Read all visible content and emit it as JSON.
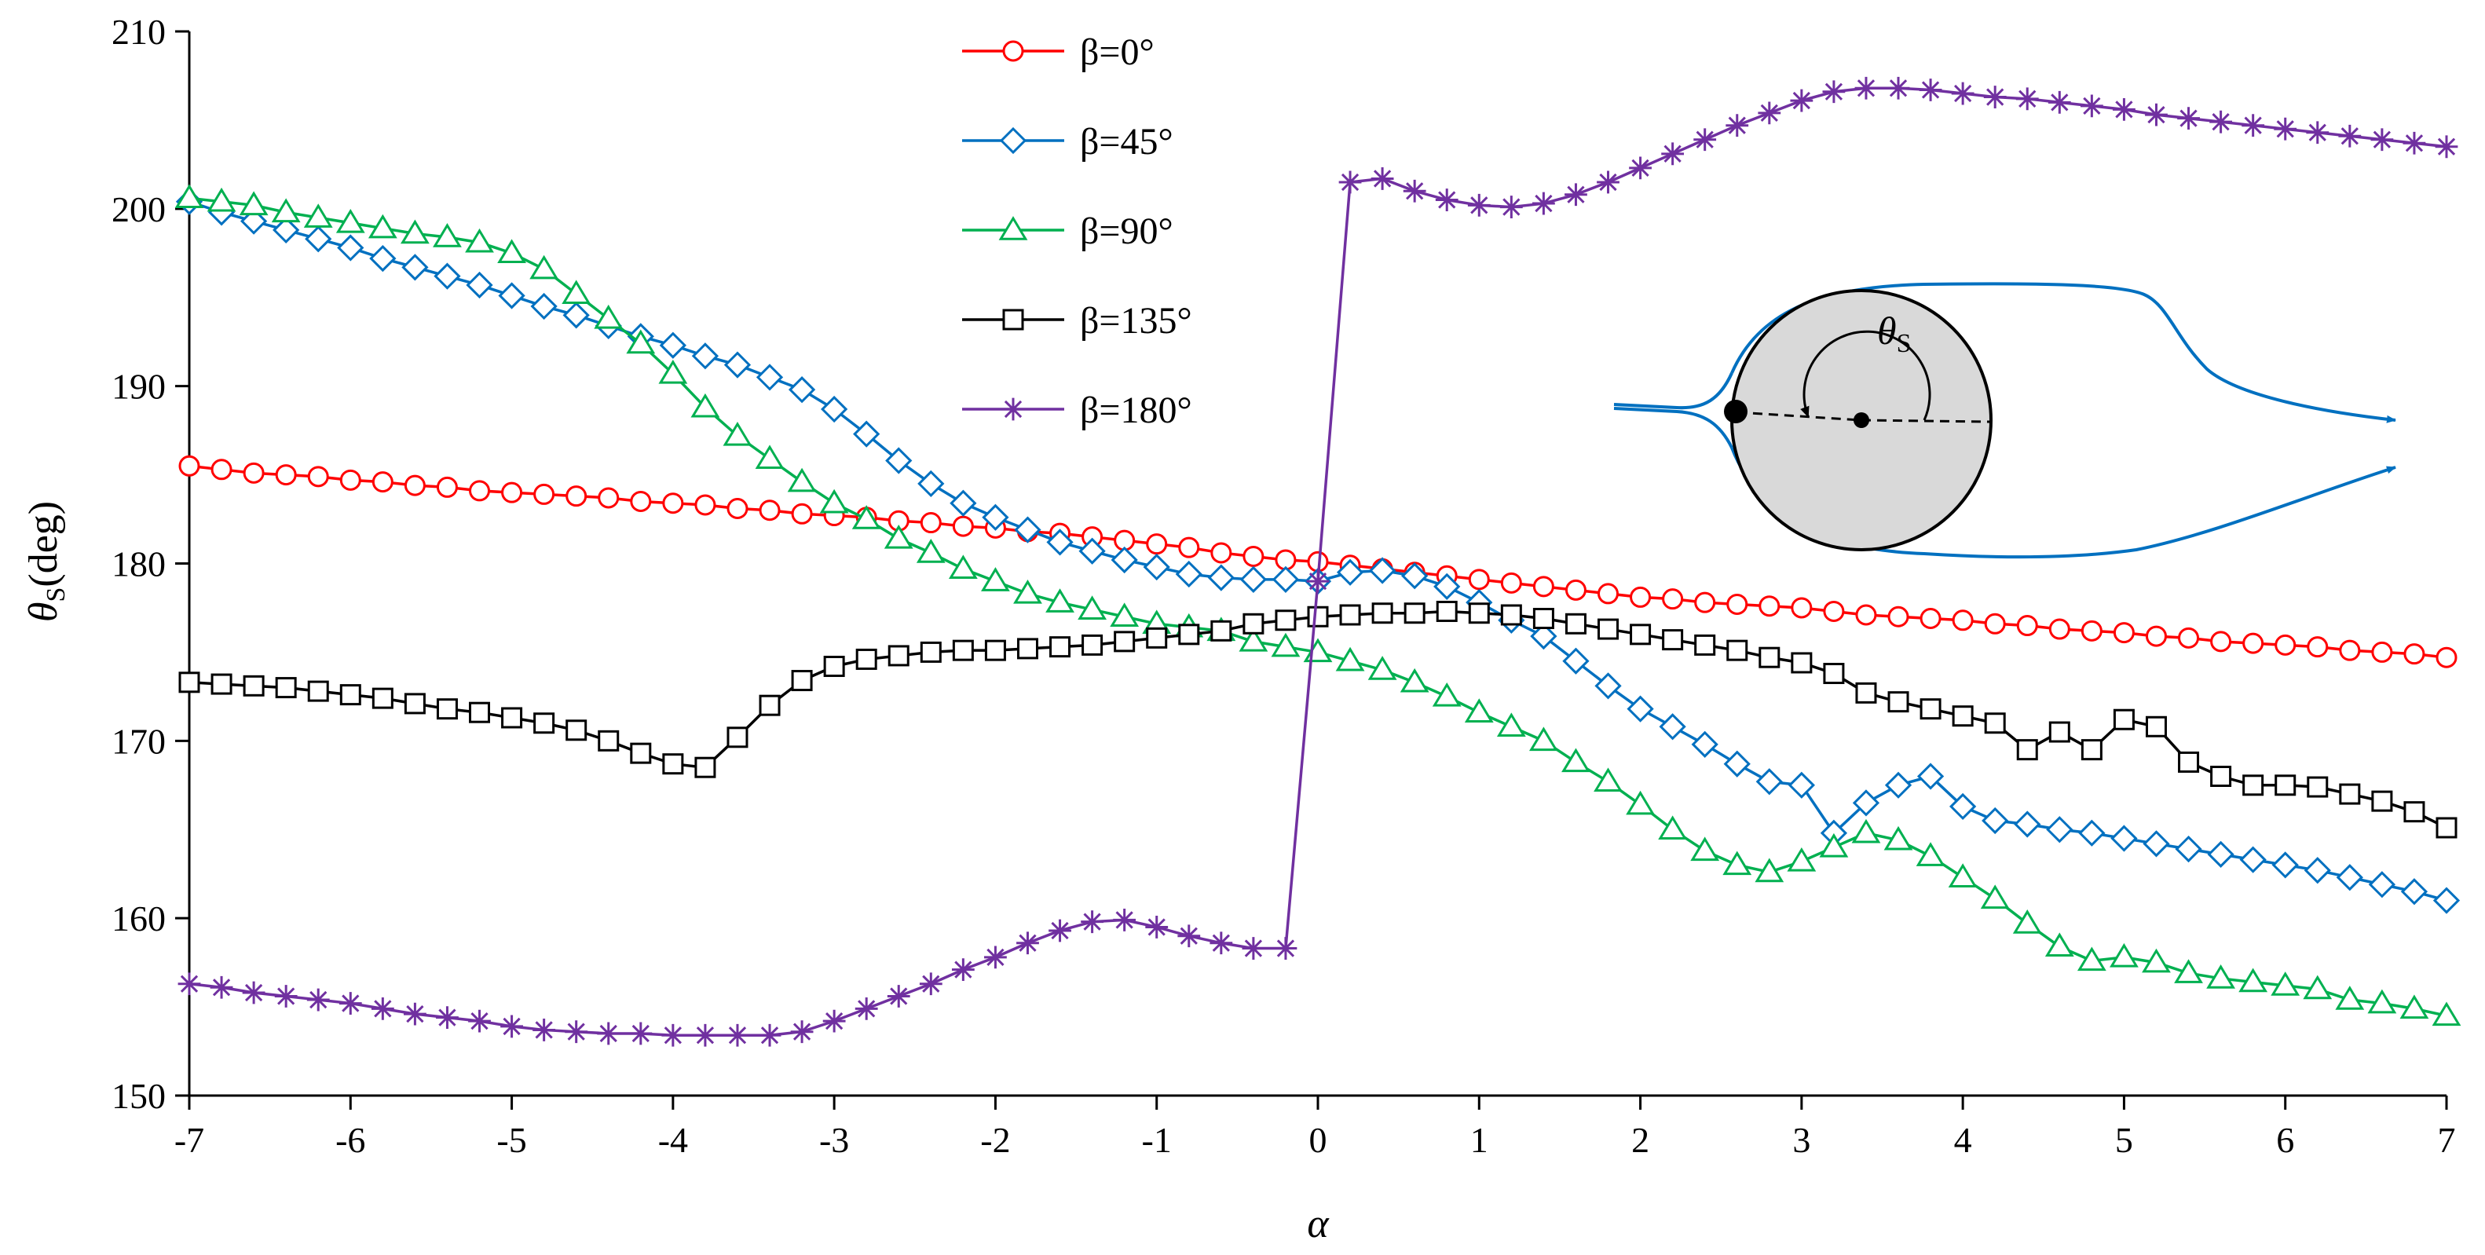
{
  "chart_data": {
    "type": "line",
    "title": "",
    "xlabel": "α",
    "ylabel": "θ",
    "ylabel_sub": "S",
    "ylabel_unit": "(deg)",
    "xlim": [
      -7,
      7
    ],
    "ylim": [
      150,
      210
    ],
    "xticks": [
      -7,
      -6,
      -5,
      -4,
      -3,
      -2,
      -1,
      0,
      1,
      2,
      3,
      4,
      5,
      6,
      7
    ],
    "yticks": [
      150,
      160,
      170,
      180,
      190,
      200,
      210
    ],
    "grid": false,
    "legend_position": "top-center",
    "x": [
      -7.0,
      -6.8,
      -6.6,
      -6.4,
      -6.2,
      -6.0,
      -5.8,
      -5.6,
      -5.4,
      -5.2,
      -5.0,
      -4.8,
      -4.6,
      -4.4,
      -4.2,
      -4.0,
      -3.8,
      -3.6,
      -3.4,
      -3.2,
      -3.0,
      -2.8,
      -2.6,
      -2.4,
      -2.2,
      -2.0,
      -1.8,
      -1.6,
      -1.4,
      -1.2,
      -1.0,
      -0.8,
      -0.6,
      -0.4,
      -0.2,
      0.0,
      0.2,
      0.4,
      0.6,
      0.8,
      1.0,
      1.2,
      1.4,
      1.6,
      1.8,
      2.0,
      2.2,
      2.4,
      2.6,
      2.8,
      3.0,
      3.2,
      3.4,
      3.6,
      3.8,
      4.0,
      4.2,
      4.4,
      4.6,
      4.8,
      5.0,
      5.2,
      5.4,
      5.6,
      5.8,
      6.0,
      6.2,
      6.4,
      6.6,
      6.8,
      7.0
    ],
    "series": [
      {
        "name": "β=0°",
        "color": "#ff0000",
        "marker": "circle",
        "values": [
          185.5,
          185.3,
          185.1,
          185.0,
          184.9,
          184.7,
          184.6,
          184.4,
          184.3,
          184.1,
          184.0,
          183.9,
          183.8,
          183.7,
          183.5,
          183.4,
          183.3,
          183.1,
          183.0,
          182.8,
          182.7,
          182.6,
          182.4,
          182.3,
          182.1,
          182.0,
          181.8,
          181.7,
          181.5,
          181.3,
          181.1,
          180.9,
          180.6,
          180.4,
          180.2,
          180.1,
          179.9,
          179.7,
          179.5,
          179.3,
          179.1,
          178.9,
          178.7,
          178.5,
          178.3,
          178.1,
          178.0,
          177.8,
          177.7,
          177.6,
          177.5,
          177.3,
          177.1,
          177.0,
          176.9,
          176.8,
          176.6,
          176.5,
          176.3,
          176.2,
          176.1,
          175.9,
          175.8,
          175.6,
          175.5,
          175.4,
          175.3,
          175.1,
          175.0,
          174.9,
          174.7
        ]
      },
      {
        "name": "β=45°",
        "color": "#0070c0",
        "marker": "diamond",
        "values": [
          200.4,
          199.8,
          199.3,
          198.8,
          198.3,
          197.8,
          197.2,
          196.7,
          196.2,
          195.7,
          195.1,
          194.5,
          194.0,
          193.4,
          192.8,
          192.3,
          191.7,
          191.2,
          190.5,
          189.8,
          188.7,
          187.3,
          185.8,
          184.5,
          183.4,
          182.6,
          181.9,
          181.2,
          180.7,
          180.2,
          179.8,
          179.4,
          179.2,
          179.1,
          179.1,
          179.0,
          179.5,
          179.6,
          179.3,
          178.7,
          177.8,
          176.8,
          175.9,
          174.5,
          173.1,
          171.8,
          170.8,
          169.8,
          168.7,
          167.7,
          167.5,
          164.8,
          166.5,
          167.5,
          168.0,
          166.3,
          165.5,
          165.3,
          165.0,
          164.8,
          164.5,
          164.2,
          163.9,
          163.6,
          163.3,
          163.0,
          162.7,
          162.3,
          161.9,
          161.5,
          161.0
        ]
      },
      {
        "name": "β=90°",
        "color": "#00b050",
        "marker": "triangle",
        "values": [
          200.6,
          200.4,
          200.2,
          199.8,
          199.5,
          199.2,
          198.9,
          198.6,
          198.4,
          198.1,
          197.5,
          196.6,
          195.2,
          193.8,
          192.4,
          190.7,
          188.8,
          187.2,
          185.9,
          184.6,
          183.4,
          182.5,
          181.4,
          180.6,
          179.7,
          179.0,
          178.3,
          177.8,
          177.4,
          177.0,
          176.6,
          176.4,
          176.2,
          175.6,
          175.3,
          175.0,
          174.5,
          174.0,
          173.3,
          172.5,
          171.6,
          170.8,
          170.0,
          168.8,
          167.7,
          166.4,
          165.0,
          163.8,
          163.0,
          162.6,
          163.2,
          164.0,
          164.8,
          164.4,
          163.5,
          162.3,
          161.1,
          159.7,
          158.4,
          157.6,
          157.8,
          157.5,
          156.9,
          156.6,
          156.4,
          156.2,
          156.0,
          155.4,
          155.2,
          154.9,
          154.5
        ]
      },
      {
        "name": "β=135°",
        "color": "#000000",
        "marker": "square",
        "values": [
          173.3,
          173.2,
          173.1,
          173.0,
          172.8,
          172.6,
          172.4,
          172.1,
          171.8,
          171.6,
          171.3,
          171.0,
          170.6,
          170.0,
          169.3,
          168.7,
          168.5,
          170.2,
          172.0,
          173.4,
          174.2,
          174.6,
          174.8,
          175.0,
          175.1,
          175.1,
          175.2,
          175.3,
          175.4,
          175.6,
          175.8,
          176.0,
          176.2,
          176.6,
          176.8,
          177.0,
          177.1,
          177.2,
          177.2,
          177.3,
          177.2,
          177.1,
          176.9,
          176.6,
          176.3,
          176.0,
          175.7,
          175.4,
          175.1,
          174.7,
          174.4,
          173.8,
          172.7,
          172.2,
          171.8,
          171.4,
          171.0,
          169.5,
          170.5,
          169.5,
          171.2,
          170.8,
          168.8,
          168.0,
          167.5,
          167.5,
          167.4,
          167.0,
          166.6,
          166.0,
          165.1
        ]
      },
      {
        "name": "β=180°",
        "color": "#7030a0",
        "marker": "star",
        "values": [
          156.3,
          156.1,
          155.8,
          155.6,
          155.4,
          155.2,
          154.9,
          154.6,
          154.4,
          154.2,
          153.9,
          153.7,
          153.6,
          153.5,
          153.5,
          153.4,
          153.4,
          153.4,
          153.4,
          153.6,
          154.2,
          154.9,
          155.6,
          156.3,
          157.1,
          157.8,
          158.6,
          159.3,
          159.8,
          159.9,
          159.5,
          159.0,
          158.6,
          158.3,
          158.3,
          179.0,
          201.5,
          201.7,
          201.0,
          200.5,
          200.2,
          200.1,
          200.3,
          200.8,
          201.5,
          202.3,
          203.1,
          203.9,
          204.7,
          205.4,
          206.1,
          206.6,
          206.8,
          206.8,
          206.7,
          206.5,
          206.3,
          206.2,
          206.0,
          205.8,
          205.6,
          205.3,
          205.1,
          204.9,
          204.7,
          204.5,
          204.3,
          204.1,
          203.9,
          203.7,
          203.5
        ]
      }
    ]
  },
  "inset": {
    "label": "θ",
    "label_sub": "S",
    "stream_color": "#0070c0",
    "cylinder_fill": "#d9d9d9"
  }
}
